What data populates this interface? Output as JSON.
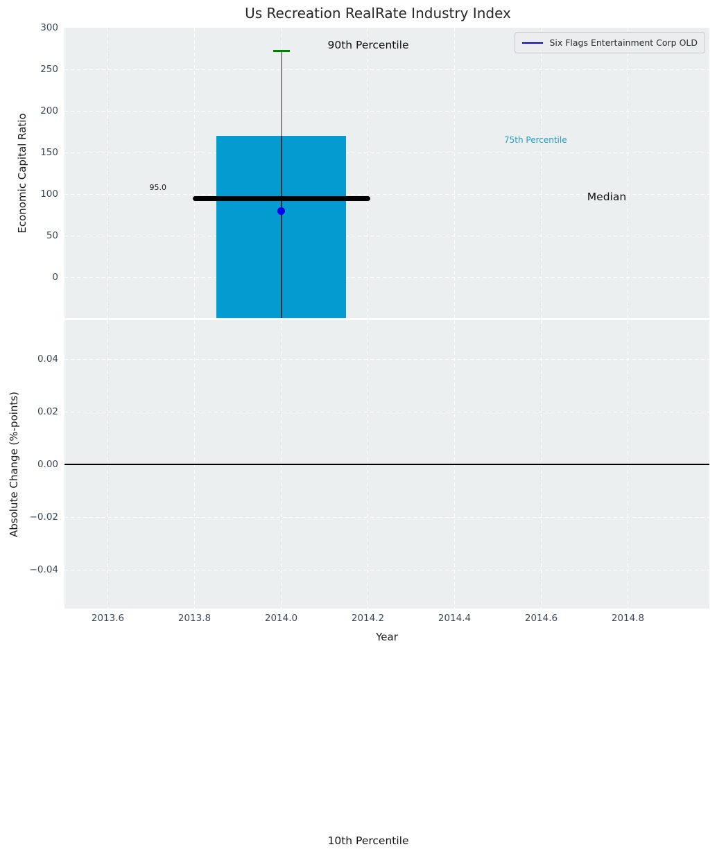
{
  "title": "Us Recreation RealRate Industry Index",
  "colors": {
    "bar": "#049bd1",
    "company_point": "#0000ee",
    "p90_cap": "#007f00",
    "median_line": "#000000",
    "zero_line": "#000000",
    "p75_label_text": "#1f9bce",
    "whisker_upper": "#8a8a8a",
    "whisker_inner": "#222e38",
    "axes_background": "#eceff0",
    "grid": "#ffffff",
    "tick_label": "#3b4859"
  },
  "legend": {
    "label": "Six Flags Entertainment Corp OLD",
    "position": "upper right"
  },
  "annotations": {
    "p90": "90th Percentile",
    "p75": "75th Percentile",
    "median": "Median",
    "p10": "10th Percentile",
    "median_value": "95.0"
  },
  "xaxis": {
    "label": "Year",
    "tick_values": [
      2013.6,
      2013.8,
      2014.0,
      2014.2,
      2014.4,
      2014.6,
      2014.8
    ],
    "tick_labels": [
      "2013.6",
      "2013.8",
      "2014.0",
      "2014.2",
      "2014.4",
      "2014.6",
      "2014.8"
    ],
    "xlim": [
      2013.5,
      2014.99
    ]
  },
  "chart_data": [
    {
      "type": "bar",
      "title": "Us Recreation RealRate Industry Index",
      "xlabel": "Year",
      "ylabel": "Economic Capital Ratio",
      "xlim": [
        2013.5,
        2014.99
      ],
      "ylim": [
        -50,
        300
      ],
      "yticks": {
        "values": [
          300,
          250,
          200,
          150,
          100,
          50,
          0
        ],
        "labels": [
          "300",
          "250",
          "200",
          "150",
          "100",
          "50",
          "0"
        ]
      },
      "grid": "white dashed on light gray, on",
      "legend_position": "upper right",
      "series": [
        {
          "name": "Six Flags Entertainment Corp OLD",
          "type": "point",
          "x": 2014.0,
          "y": 80
        }
      ],
      "percentile_box": {
        "x_center": 2014.0,
        "bar_width_years": 0.3,
        "p90": 272,
        "p75": 170,
        "median": 95,
        "p10": "below axis range (bar clipped at axis bottom)",
        "median_label": "95.0",
        "median_line_span": [
          2013.8,
          2014.2
        ]
      }
    },
    {
      "type": "line",
      "xlabel": "Year",
      "ylabel": "Absolute Change (%-points)",
      "xlim": [
        2013.5,
        2014.99
      ],
      "ylim": [
        -0.055,
        0.055
      ],
      "yticks": {
        "values": [
          0.04,
          0.02,
          0,
          -0.02,
          -0.04
        ],
        "labels": [
          "0.04",
          "0.02",
          "0.00",
          "−0.02",
          "−0.04"
        ]
      },
      "zero_line_y": 0.0,
      "grid": "white dashed on light gray, on",
      "series": []
    }
  ]
}
